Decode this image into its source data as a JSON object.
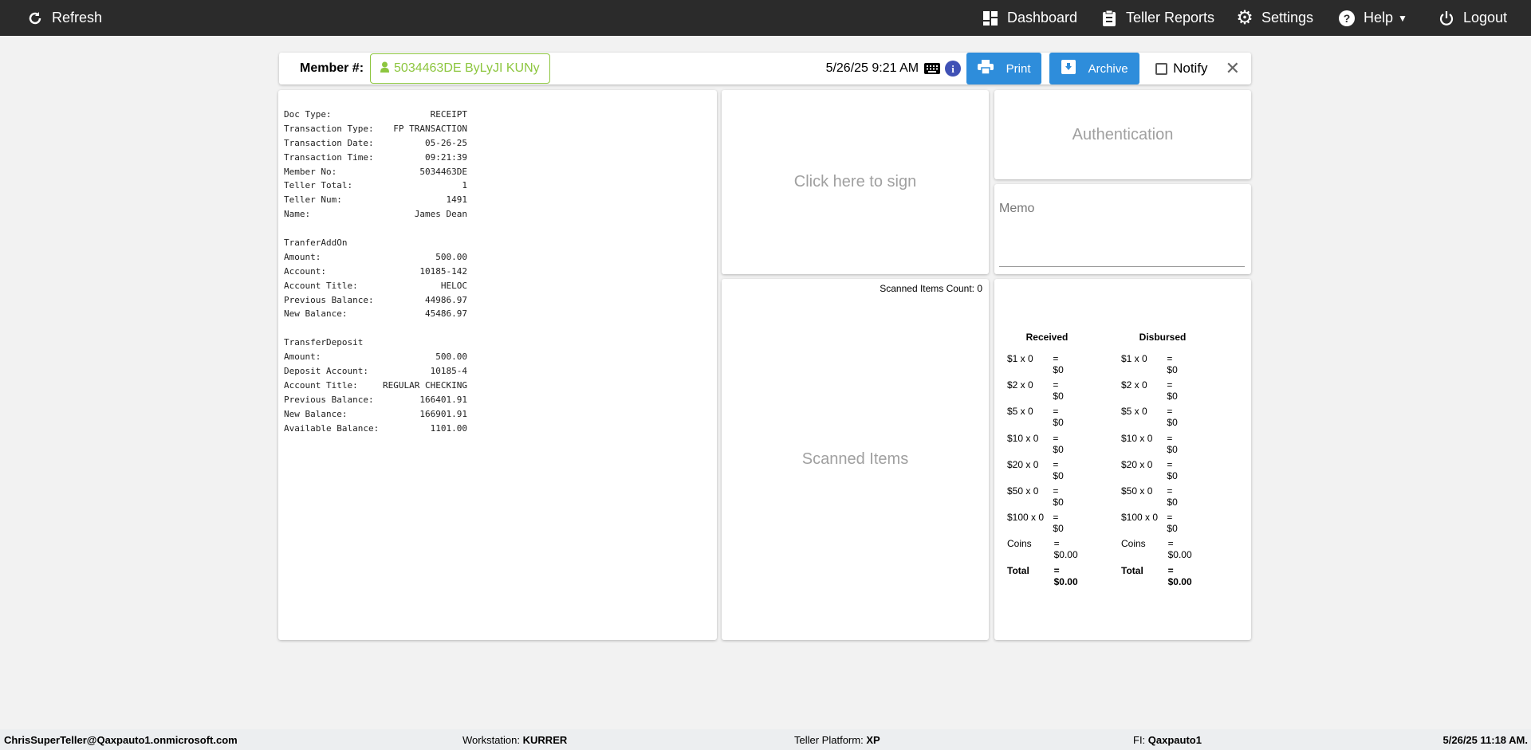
{
  "nav": {
    "refresh": "Refresh",
    "dashboard": "Dashboard",
    "teller_reports": "Teller Reports",
    "settings": "Settings",
    "help": "Help",
    "logout": "Logout"
  },
  "header": {
    "member_label": "Member #:",
    "member_value": "5034463DE ByLyJI KUNy",
    "datetime": "5/26/25 9:21 AM",
    "print": "Print",
    "archive": "Archive",
    "notify": "Notify",
    "notify_checked": false
  },
  "receipt": {
    "sections": [
      [
        [
          "Doc Type:",
          "RECEIPT"
        ],
        [
          "Transaction Type:",
          "FP TRANSACTION"
        ],
        [
          "Transaction Date:",
          "05-26-25"
        ],
        [
          "Transaction Time:",
          "09:21:39"
        ],
        [
          "Member No:",
          "5034463DE"
        ],
        [
          "Teller Total:",
          "1"
        ],
        [
          "Teller Num:",
          "1491"
        ],
        [
          "Name:",
          "James Dean"
        ]
      ],
      [
        [
          "TranferAddOn",
          ""
        ],
        [
          "Amount:",
          "500.00"
        ],
        [
          "Account:",
          "10185-142"
        ],
        [
          "Account Title:",
          "HELOC"
        ],
        [
          "Previous Balance:",
          "44986.97"
        ],
        [
          "New Balance:",
          "45486.97"
        ]
      ],
      [
        [
          "TransferDeposit",
          ""
        ],
        [
          "Amount:",
          "500.00"
        ],
        [
          "Deposit Account:",
          "10185-4"
        ],
        [
          "Account Title:",
          "REGULAR CHECKING"
        ],
        [
          "Previous Balance:",
          "166401.91"
        ],
        [
          "New Balance:",
          "166901.91"
        ],
        [
          "Available Balance:",
          "1101.00"
        ]
      ]
    ]
  },
  "signature": {
    "prompt": "Click here to sign"
  },
  "scanned": {
    "count_label": "Scanned Items Count: 0",
    "placeholder": "Scanned Items"
  },
  "auth": {
    "title": "Authentication"
  },
  "memo": {
    "placeholder": "Memo"
  },
  "cash": {
    "columns": [
      {
        "title": "Received",
        "rows": [
          [
            "$1 x 0",
            "= $0"
          ],
          [
            "$2 x 0",
            "= $0"
          ],
          [
            "$5 x 0",
            "= $0"
          ],
          [
            "$10 x 0",
            "= $0"
          ],
          [
            "$20 x 0",
            "= $0"
          ],
          [
            "$50 x 0",
            "= $0"
          ],
          [
            "$100 x 0",
            "= $0"
          ],
          [
            "Coins",
            "= $0.00"
          ],
          [
            "Total",
            "= $0.00"
          ]
        ]
      },
      {
        "title": "Disbursed",
        "rows": [
          [
            "$1 x 0",
            "= $0"
          ],
          [
            "$2 x 0",
            "= $0"
          ],
          [
            "$5 x 0",
            "= $0"
          ],
          [
            "$10 x 0",
            "= $0"
          ],
          [
            "$20 x 0",
            "= $0"
          ],
          [
            "$50 x 0",
            "= $0"
          ],
          [
            "$100 x 0",
            "= $0"
          ],
          [
            "Coins",
            "= $0.00"
          ],
          [
            "Total",
            "= $0.00"
          ]
        ]
      }
    ]
  },
  "footer": {
    "user": "ChrisSuperTeller@Qaxpauto1.onmicrosoft.com",
    "workstation_label": "Workstation:",
    "workstation": "KURRER",
    "platform_label": "Teller Platform:",
    "platform": "XP",
    "fi_label": "FI:",
    "fi": "Qaxpauto1",
    "datetime": "5/26/25 11:18 AM."
  },
  "colors": {
    "nav_bg": "#2b2b2b",
    "button": "#2e8ddb",
    "member_accent": "#8dc63f",
    "info_icon": "#3f51b5"
  }
}
